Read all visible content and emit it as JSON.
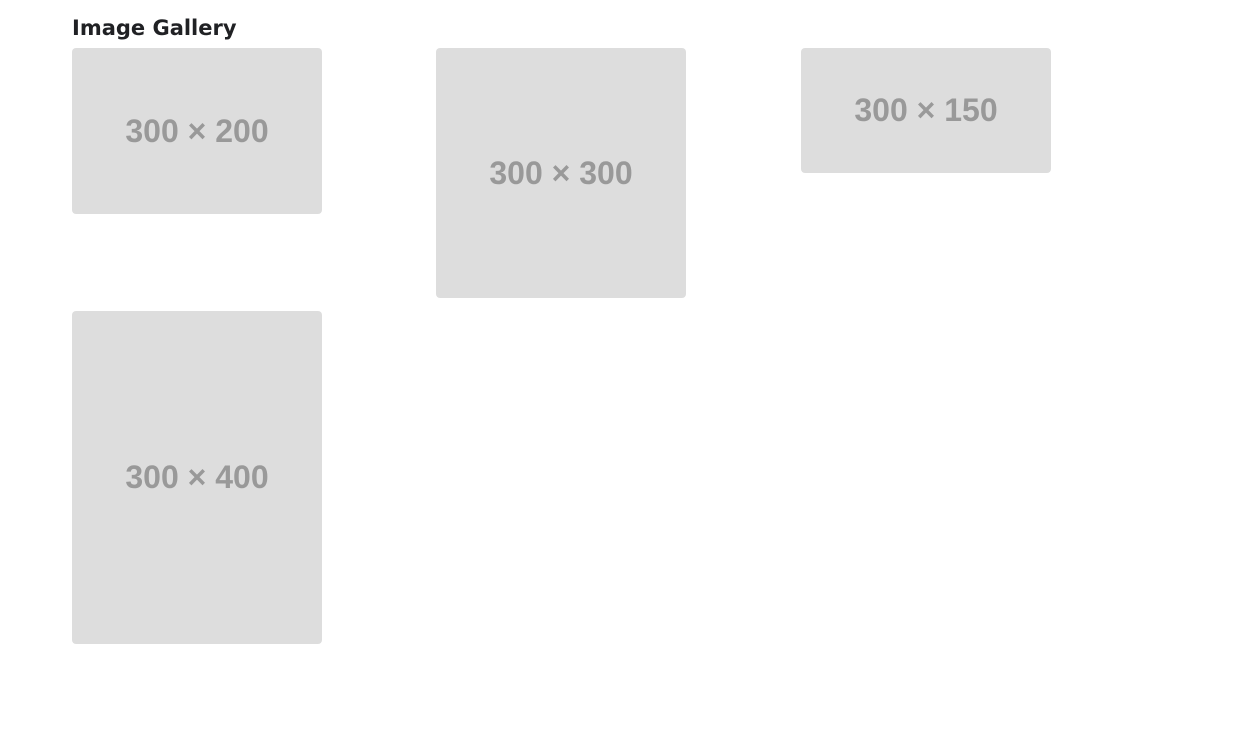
{
  "page": {
    "title": "Image Gallery"
  },
  "gallery": {
    "images": [
      {
        "label": "300 × 200"
      },
      {
        "label": "300 × 300"
      },
      {
        "label": "300 × 150"
      },
      {
        "label": "300 × 400"
      }
    ]
  },
  "colors": {
    "placeholder_background": "#dddddd",
    "placeholder_text": "#999999",
    "title_text": "#202124",
    "page_background": "#ffffff"
  }
}
